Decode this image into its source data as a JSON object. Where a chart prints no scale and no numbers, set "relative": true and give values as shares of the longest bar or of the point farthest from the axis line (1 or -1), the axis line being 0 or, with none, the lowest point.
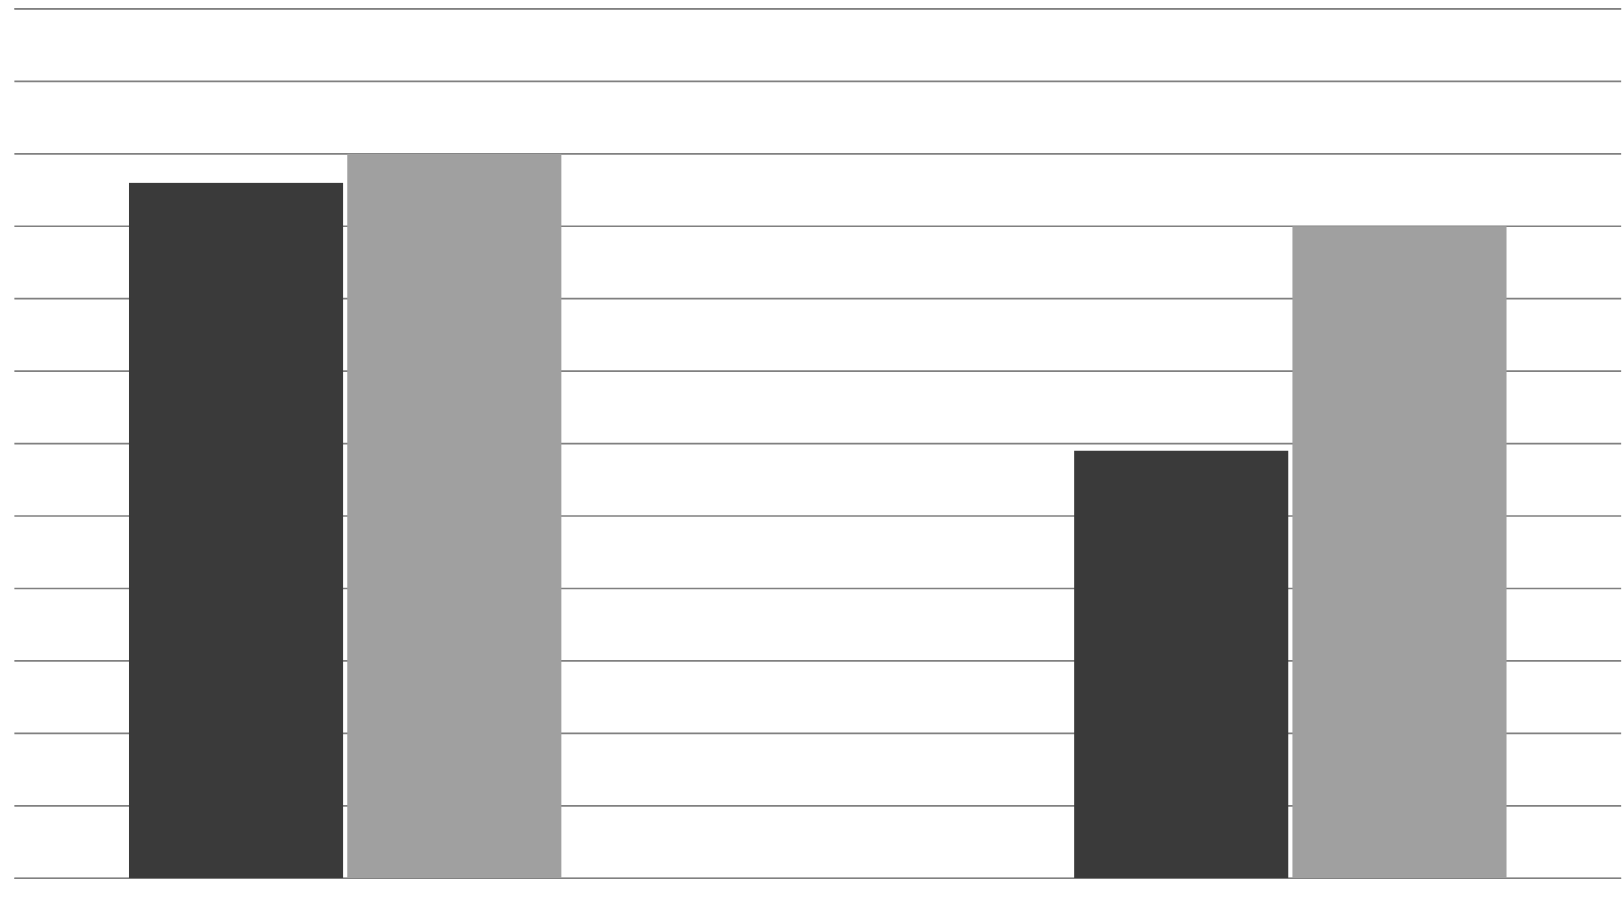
{
  "chart_data": {
    "type": "bar",
    "relative": true,
    "grid": "y",
    "categories": [
      null,
      null
    ],
    "series": [
      {
        "color": "#3a3a3a",
        "values": [
          0.96,
          0.59
        ]
      },
      {
        "color": "#a0a0a0",
        "values": [
          1,
          0.9
        ]
      }
    ]
  }
}
